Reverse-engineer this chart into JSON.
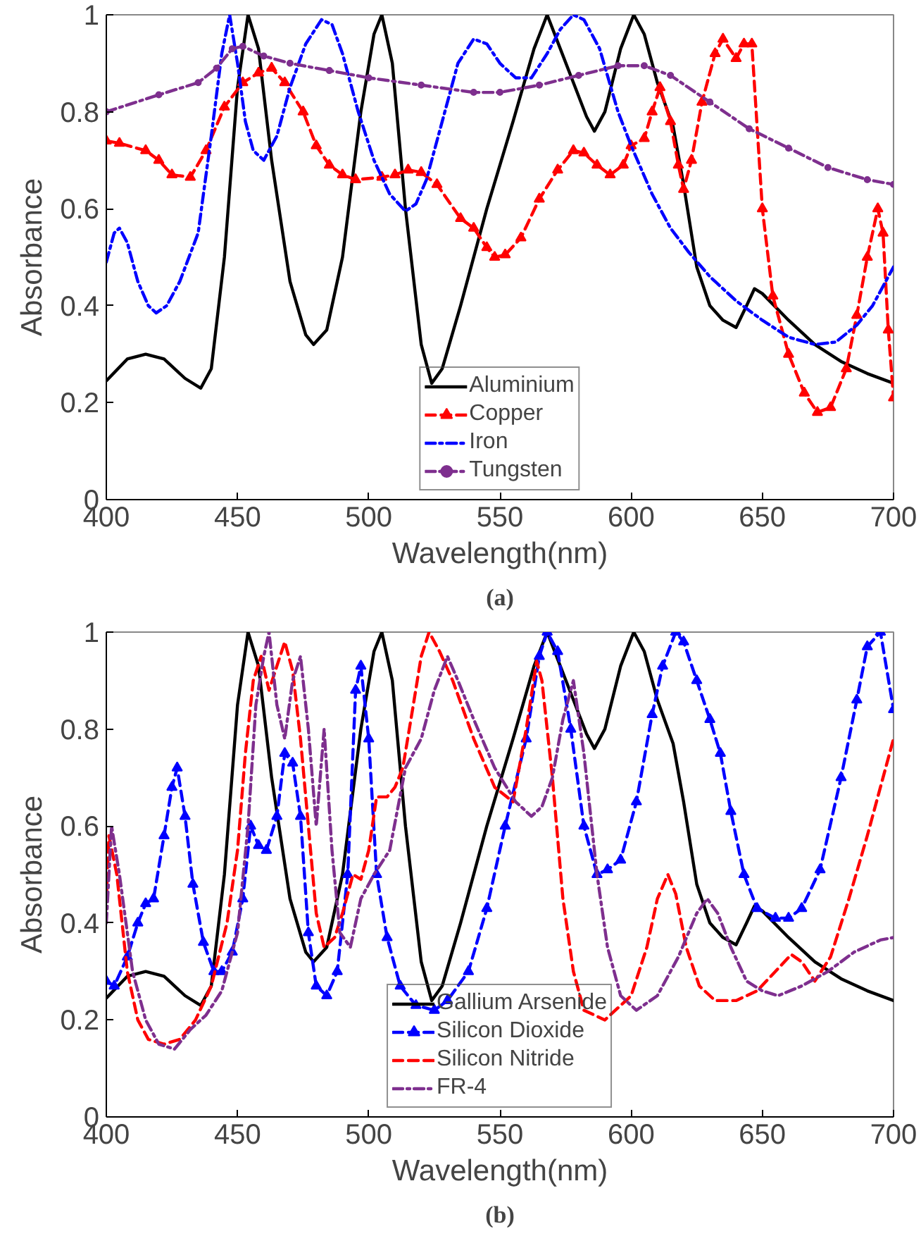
{
  "chart_data": [
    {
      "type": "line",
      "xlabel": "Wavelength(nm)",
      "ylabel": "Absorbance",
      "annotations": [
        "(a)"
      ],
      "xlim": [
        400,
        700
      ],
      "ylim": [
        0,
        1
      ],
      "xticks": [
        400,
        450,
        500,
        550,
        600,
        650,
        700
      ],
      "yticks": [
        0,
        0.2,
        0.4,
        0.6,
        0.8,
        1
      ],
      "grid": false,
      "legend": "bottom",
      "series": [
        {
          "name": "Aluminium",
          "color": "#000000",
          "line_style": "solid",
          "marker": "none",
          "x": [
            400,
            408,
            415,
            422,
            430,
            436,
            440,
            445,
            450,
            454,
            458,
            463,
            470,
            476,
            479,
            484,
            490,
            497,
            502,
            505,
            509,
            514,
            520,
            524,
            528,
            535,
            545,
            555,
            563,
            568,
            573,
            578,
            583,
            586,
            590,
            596,
            601,
            605,
            610,
            616,
            620,
            625,
            630,
            635,
            640,
            644,
            647,
            650,
            660,
            670,
            680,
            690,
            700
          ],
          "values": [
            0.245,
            0.29,
            0.3,
            0.29,
            0.25,
            0.23,
            0.27,
            0.5,
            0.85,
            1.0,
            0.93,
            0.7,
            0.45,
            0.34,
            0.32,
            0.35,
            0.5,
            0.8,
            0.96,
            1.0,
            0.9,
            0.6,
            0.32,
            0.24,
            0.27,
            0.4,
            0.6,
            0.78,
            0.93,
            1.0,
            0.93,
            0.86,
            0.79,
            0.76,
            0.8,
            0.93,
            1.0,
            0.96,
            0.86,
            0.77,
            0.65,
            0.48,
            0.4,
            0.37,
            0.355,
            0.4,
            0.435,
            0.425,
            0.37,
            0.32,
            0.285,
            0.26,
            0.24
          ]
        },
        {
          "name": "Copper",
          "color": "#ff0000",
          "line_style": "dashed",
          "marker": "triangle",
          "x": [
            400,
            405,
            415,
            420,
            425,
            432,
            438,
            445,
            452,
            458,
            463,
            468,
            475,
            480,
            485,
            490,
            495,
            505,
            510,
            515,
            520,
            526,
            535,
            540,
            545,
            548,
            552,
            558,
            565,
            572,
            578,
            582,
            587,
            592,
            597,
            600,
            605,
            608,
            611,
            615,
            618,
            620,
            623,
            627,
            632,
            635,
            640,
            643,
            646,
            650,
            654,
            660,
            666,
            671,
            676,
            682,
            686,
            690,
            694,
            696,
            698,
            700
          ],
          "values": [
            0.74,
            0.735,
            0.72,
            0.7,
            0.67,
            0.665,
            0.72,
            0.81,
            0.86,
            0.88,
            0.89,
            0.86,
            0.8,
            0.73,
            0.69,
            0.67,
            0.66,
            0.665,
            0.67,
            0.68,
            0.675,
            0.65,
            0.58,
            0.56,
            0.52,
            0.5,
            0.505,
            0.54,
            0.62,
            0.68,
            0.72,
            0.715,
            0.69,
            0.67,
            0.69,
            0.73,
            0.745,
            0.8,
            0.85,
            0.78,
            0.69,
            0.64,
            0.7,
            0.82,
            0.92,
            0.95,
            0.91,
            0.94,
            0.94,
            0.6,
            0.42,
            0.3,
            0.22,
            0.18,
            0.19,
            0.27,
            0.38,
            0.5,
            0.6,
            0.55,
            0.35,
            0.21
          ]
        },
        {
          "name": "Iron",
          "color": "#0000ff",
          "line_style": "dashdot",
          "marker": "none",
          "x": [
            400,
            403,
            405,
            408,
            412,
            416,
            419,
            423,
            428,
            435,
            440,
            444,
            447,
            450,
            453,
            456,
            460,
            465,
            470,
            476,
            482,
            486,
            490,
            496,
            502,
            508,
            514,
            518,
            522,
            528,
            534,
            540,
            545,
            550,
            556,
            562,
            568,
            573,
            578,
            582,
            588,
            595,
            600,
            608,
            615,
            622,
            630,
            640,
            650,
            660,
            670,
            678,
            686,
            692,
            700
          ],
          "values": [
            0.49,
            0.55,
            0.56,
            0.53,
            0.45,
            0.4,
            0.385,
            0.4,
            0.45,
            0.55,
            0.75,
            0.92,
            1.0,
            0.9,
            0.78,
            0.72,
            0.7,
            0.75,
            0.85,
            0.94,
            0.99,
            0.98,
            0.92,
            0.8,
            0.7,
            0.63,
            0.595,
            0.61,
            0.66,
            0.78,
            0.9,
            0.95,
            0.94,
            0.9,
            0.87,
            0.87,
            0.92,
            0.97,
            1.0,
            0.99,
            0.93,
            0.8,
            0.73,
            0.63,
            0.56,
            0.51,
            0.46,
            0.41,
            0.37,
            0.335,
            0.32,
            0.325,
            0.36,
            0.4,
            0.48
          ]
        },
        {
          "name": "Tungsten",
          "color": "#7e2f8e",
          "line_style": "dashdot",
          "marker": "circle",
          "x": [
            400,
            420,
            435,
            442,
            448,
            452,
            460,
            470,
            485,
            500,
            520,
            540,
            550,
            565,
            580,
            595,
            605,
            615,
            630,
            645,
            660,
            675,
            690,
            700
          ],
          "values": [
            0.8,
            0.835,
            0.86,
            0.89,
            0.93,
            0.935,
            0.915,
            0.9,
            0.885,
            0.87,
            0.855,
            0.84,
            0.84,
            0.855,
            0.875,
            0.895,
            0.895,
            0.875,
            0.82,
            0.765,
            0.725,
            0.685,
            0.66,
            0.65
          ]
        }
      ]
    },
    {
      "type": "line",
      "xlabel": "Wavelength(nm)",
      "ylabel": "Absorbance",
      "annotations": [
        "(b)"
      ],
      "xlim": [
        400,
        700
      ],
      "ylim": [
        0,
        1
      ],
      "xticks": [
        400,
        450,
        500,
        550,
        600,
        650,
        700
      ],
      "yticks": [
        0,
        0.2,
        0.4,
        0.6,
        0.8,
        1
      ],
      "grid": false,
      "legend": "bottom",
      "series": [
        {
          "name": "Gallium Arsenide",
          "color": "#000000",
          "line_style": "solid",
          "marker": "none",
          "x": [
            400,
            408,
            415,
            422,
            430,
            436,
            440,
            445,
            450,
            454,
            458,
            463,
            470,
            476,
            479,
            484,
            490,
            497,
            502,
            505,
            509,
            514,
            520,
            524,
            528,
            535,
            545,
            555,
            563,
            568,
            573,
            578,
            583,
            586,
            590,
            596,
            601,
            605,
            610,
            616,
            620,
            625,
            630,
            635,
            640,
            644,
            647,
            650,
            660,
            670,
            680,
            690,
            700
          ],
          "values": [
            0.245,
            0.29,
            0.3,
            0.29,
            0.25,
            0.23,
            0.27,
            0.5,
            0.85,
            1.0,
            0.93,
            0.7,
            0.45,
            0.34,
            0.32,
            0.35,
            0.5,
            0.8,
            0.96,
            1.0,
            0.9,
            0.6,
            0.32,
            0.24,
            0.27,
            0.4,
            0.6,
            0.78,
            0.93,
            1.0,
            0.93,
            0.86,
            0.79,
            0.76,
            0.8,
            0.93,
            1.0,
            0.96,
            0.86,
            0.77,
            0.65,
            0.48,
            0.4,
            0.37,
            0.355,
            0.4,
            0.435,
            0.425,
            0.37,
            0.32,
            0.285,
            0.26,
            0.24
          ]
        },
        {
          "name": "Silicon Dioxide",
          "color": "#0000ff",
          "line_style": "dashed",
          "marker": "triangle",
          "x": [
            400,
            403,
            408,
            412,
            415,
            418,
            422,
            425,
            427,
            430,
            433,
            437,
            441,
            444,
            448,
            452,
            455,
            458,
            461,
            465,
            468,
            471,
            474,
            477,
            480,
            484,
            488,
            492,
            495,
            497,
            500,
            503,
            507,
            512,
            518,
            525,
            530,
            538,
            545,
            552,
            560,
            565,
            568,
            572,
            577,
            582,
            587,
            591,
            596,
            602,
            608,
            612,
            617,
            620,
            625,
            630,
            634,
            638,
            643,
            648,
            655,
            660,
            665,
            672,
            680,
            686,
            690,
            695,
            700
          ],
          "values": [
            0.28,
            0.27,
            0.33,
            0.4,
            0.44,
            0.45,
            0.58,
            0.68,
            0.72,
            0.62,
            0.48,
            0.36,
            0.3,
            0.3,
            0.34,
            0.45,
            0.6,
            0.56,
            0.55,
            0.62,
            0.75,
            0.73,
            0.62,
            0.38,
            0.27,
            0.25,
            0.3,
            0.5,
            0.88,
            0.93,
            0.78,
            0.5,
            0.37,
            0.27,
            0.23,
            0.22,
            0.24,
            0.3,
            0.43,
            0.6,
            0.78,
            0.95,
            1.0,
            0.96,
            0.8,
            0.6,
            0.5,
            0.51,
            0.53,
            0.65,
            0.83,
            0.93,
            1.0,
            0.98,
            0.9,
            0.82,
            0.75,
            0.63,
            0.5,
            0.43,
            0.41,
            0.41,
            0.43,
            0.51,
            0.7,
            0.86,
            0.97,
            1.0,
            0.84
          ]
        },
        {
          "name": "Silicon Nitride",
          "color": "#ff0000",
          "line_style": "dashed",
          "marker": "none",
          "x": [
            400,
            401,
            404,
            408,
            412,
            416,
            422,
            428,
            434,
            440,
            446,
            450,
            453,
            456,
            459,
            462,
            465,
            468,
            471,
            474,
            477,
            480,
            483,
            487,
            490,
            494,
            497,
            500,
            503,
            507,
            510,
            513,
            517,
            520,
            523,
            527,
            532,
            540,
            548,
            555,
            560,
            564,
            566,
            570,
            574,
            578,
            582,
            590,
            600,
            606,
            610,
            614,
            617,
            621,
            626,
            632,
            640,
            648,
            655,
            661,
            665,
            670,
            676,
            683,
            690,
            695,
            700
          ],
          "values": [
            0.45,
            0.58,
            0.5,
            0.3,
            0.2,
            0.16,
            0.15,
            0.16,
            0.2,
            0.27,
            0.4,
            0.55,
            0.75,
            0.9,
            0.95,
            0.88,
            0.93,
            0.98,
            0.92,
            0.78,
            0.6,
            0.42,
            0.35,
            0.37,
            0.42,
            0.5,
            0.49,
            0.55,
            0.66,
            0.66,
            0.68,
            0.72,
            0.85,
            0.95,
            1.0,
            0.96,
            0.9,
            0.78,
            0.68,
            0.65,
            0.8,
            0.94,
            0.9,
            0.7,
            0.45,
            0.3,
            0.22,
            0.2,
            0.25,
            0.35,
            0.45,
            0.5,
            0.46,
            0.35,
            0.27,
            0.24,
            0.24,
            0.26,
            0.3,
            0.335,
            0.32,
            0.28,
            0.33,
            0.45,
            0.58,
            0.68,
            0.78
          ]
        },
        {
          "name": "FR-4",
          "color": "#7e2f8e",
          "line_style": "dashdot",
          "marker": "none",
          "x": [
            400,
            402,
            405,
            410,
            415,
            420,
            426,
            432,
            438,
            444,
            450,
            454,
            457,
            460,
            462,
            465,
            468,
            471,
            474,
            477,
            480,
            483,
            486,
            489,
            493,
            497,
            502,
            508,
            514,
            520,
            525,
            530,
            534,
            540,
            548,
            556,
            562,
            566,
            570,
            574,
            578,
            582,
            587,
            591,
            596,
            602,
            610,
            618,
            625,
            629,
            633,
            638,
            644,
            650,
            656,
            665,
            675,
            685,
            695,
            700
          ],
          "values": [
            0.4,
            0.6,
            0.5,
            0.3,
            0.2,
            0.15,
            0.14,
            0.18,
            0.21,
            0.26,
            0.38,
            0.6,
            0.85,
            0.95,
            1.0,
            0.85,
            0.78,
            0.9,
            0.95,
            0.8,
            0.6,
            0.8,
            0.55,
            0.38,
            0.35,
            0.45,
            0.5,
            0.55,
            0.72,
            0.78,
            0.88,
            0.95,
            0.9,
            0.82,
            0.72,
            0.65,
            0.62,
            0.64,
            0.7,
            0.82,
            0.9,
            0.75,
            0.5,
            0.35,
            0.25,
            0.22,
            0.25,
            0.33,
            0.42,
            0.45,
            0.42,
            0.35,
            0.28,
            0.26,
            0.25,
            0.27,
            0.3,
            0.34,
            0.365,
            0.37
          ]
        }
      ]
    }
  ]
}
